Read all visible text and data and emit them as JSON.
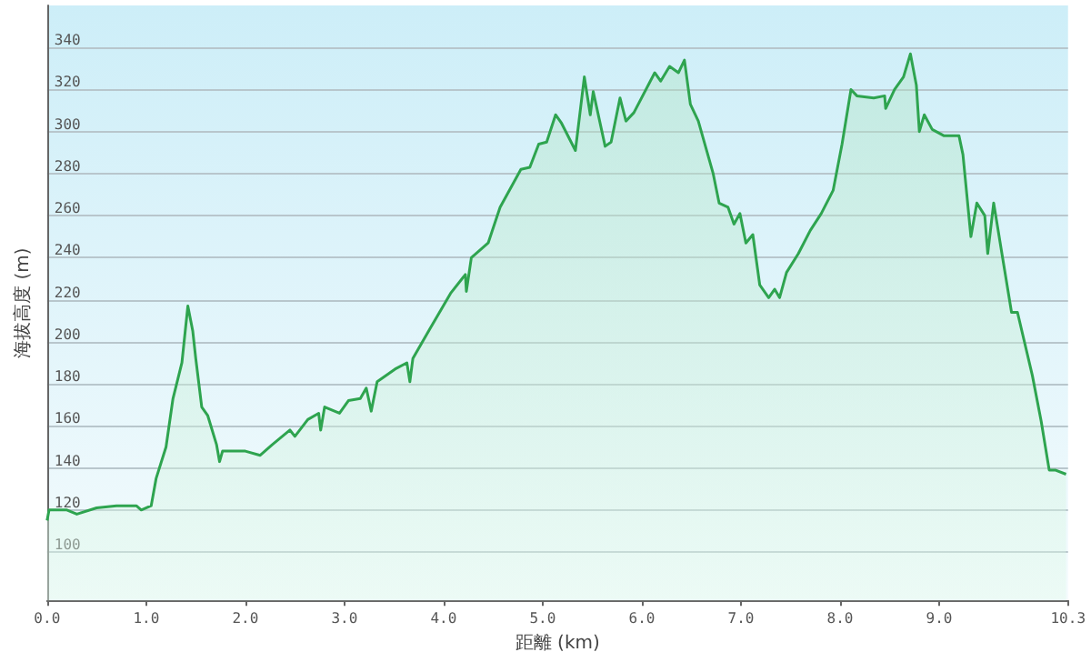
{
  "chart_data": {
    "type": "area",
    "xlabel": "距離 (km)",
    "ylabel": "海拔高度 (m)",
    "x": [
      0,
      0.02,
      0.2,
      0.3,
      0.5,
      0.7,
      0.9,
      0.95,
      1.05,
      1.1,
      1.2,
      1.27,
      1.36,
      1.42,
      1.47,
      1.5,
      1.56,
      1.62,
      1.71,
      1.74,
      1.77,
      2.0,
      2.15,
      2.27,
      2.45,
      2.5,
      2.63,
      2.74,
      2.76,
      2.8,
      2.95,
      3.04,
      3.16,
      3.22,
      3.27,
      3.33,
      3.51,
      3.63,
      3.66,
      3.69,
      3.86,
      4.07,
      4.22,
      4.23,
      4.28,
      4.45,
      4.57,
      4.78,
      4.87,
      4.96,
      5.04,
      5.13,
      5.19,
      5.33,
      5.42,
      5.48,
      5.51,
      5.63,
      5.69,
      5.78,
      5.84,
      5.92,
      6.13,
      6.19,
      6.28,
      6.37,
      6.43,
      6.49,
      6.57,
      6.72,
      6.78,
      6.87,
      6.93,
      6.99,
      7.05,
      7.12,
      7.19,
      7.28,
      7.34,
      7.39,
      7.46,
      7.58,
      7.7,
      7.81,
      7.93,
      8.02,
      8.11,
      8.17,
      8.34,
      8.45,
      8.46,
      8.55,
      8.64,
      8.71,
      8.77,
      8.8,
      8.85,
      8.93,
      9.05,
      9.2,
      9.24,
      9.32,
      9.38,
      9.46,
      9.49,
      9.55,
      9.64,
      9.73,
      9.79,
      9.94,
      10.03,
      10.11,
      10.17,
      10.28
    ],
    "series": [
      {
        "color": "#2ea44f",
        "values": [
          115,
          120,
          120,
          118,
          121,
          122,
          122,
          120,
          122,
          135,
          150,
          173,
          190,
          217,
          205,
          192,
          169,
          165,
          151,
          143,
          148,
          148,
          146,
          151,
          158,
          155,
          163,
          166,
          158,
          169,
          166,
          172,
          173,
          178,
          167,
          181,
          187,
          190,
          181,
          192,
          206,
          223,
          232,
          224,
          240,
          247,
          264,
          282,
          283,
          294,
          295,
          308,
          304,
          291,
          326,
          308,
          319,
          293,
          295,
          316,
          305,
          309,
          328,
          324,
          331,
          328,
          334,
          313,
          305,
          280,
          266,
          264,
          256,
          261,
          247,
          251,
          227,
          221,
          225,
          221,
          233,
          242,
          253,
          261,
          272,
          294,
          320,
          317,
          316,
          317,
          311,
          320,
          326,
          337,
          322,
          300,
          308,
          301,
          298,
          298,
          289,
          250,
          266,
          260,
          242,
          266,
          240,
          214,
          214,
          184,
          162,
          139,
          139,
          137
        ]
      }
    ],
    "xlim": [
      0,
      10.3
    ],
    "ylim": [
      77,
      360
    ],
    "xticks": [
      {
        "value": 0,
        "label": "0.0"
      },
      {
        "value": 1,
        "label": "1.0"
      },
      {
        "value": 2,
        "label": "2.0"
      },
      {
        "value": 3,
        "label": "3.0"
      },
      {
        "value": 4,
        "label": "4.0"
      },
      {
        "value": 5,
        "label": "5.0"
      },
      {
        "value": 6,
        "label": "6.0"
      },
      {
        "value": 7,
        "label": "7.0"
      },
      {
        "value": 8,
        "label": "8.0"
      },
      {
        "value": 9,
        "label": "9.0"
      },
      10.3
    ],
    "yticks": [
      100,
      120,
      140,
      160,
      180,
      200,
      220,
      240,
      260,
      280,
      300,
      320,
      340
    ],
    "grid": "y",
    "marker": "none",
    "line_style": "solid"
  }
}
